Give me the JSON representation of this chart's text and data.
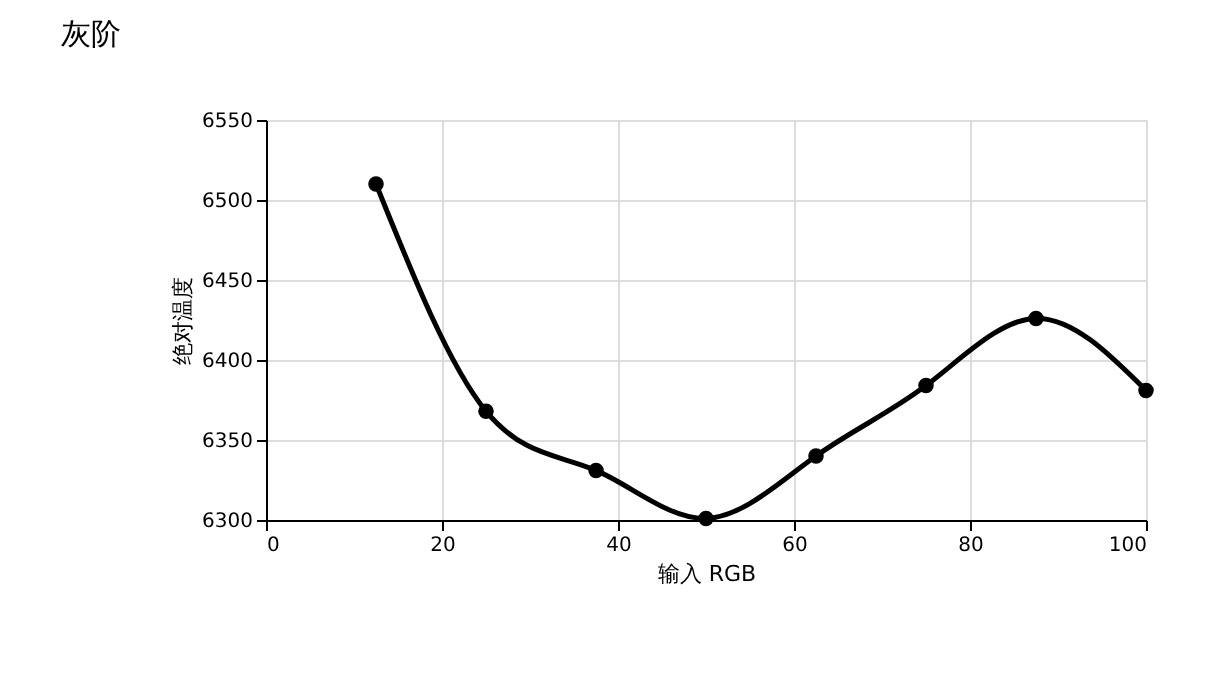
{
  "chart_data": {
    "type": "line",
    "title": "灰阶",
    "xlabel": "输入 RGB",
    "ylabel": "绝对温度",
    "x": [
      12.5,
      25,
      37.5,
      50,
      62.5,
      75,
      87.5,
      100
    ],
    "series": [
      {
        "color": "#000000",
        "values": [
          6510,
          6368,
          6331,
          6301,
          6340,
          6384,
          6426,
          6381
        ]
      }
    ],
    "xlim": [
      0,
      100
    ],
    "xticks": [
      0,
      20,
      40,
      60,
      80,
      100
    ],
    "ylim": [
      6300,
      6550
    ],
    "yticks": [
      6300,
      6350,
      6400,
      6450,
      6500,
      6550
    ],
    "grid": true,
    "marker": "circle",
    "line_style": "solid"
  }
}
